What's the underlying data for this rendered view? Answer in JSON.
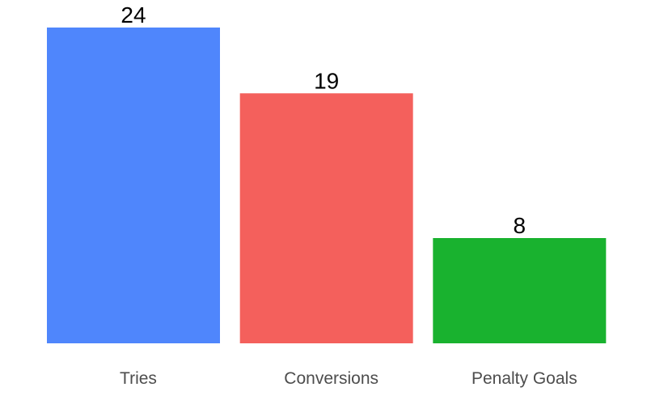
{
  "chart_data": {
    "type": "bar",
    "categories": [
      "Tries",
      "Conversions",
      "Penalty Goals"
    ],
    "values": [
      24,
      19,
      8
    ],
    "colors": [
      "#4f86fc",
      "#f4605c",
      "#19b22f"
    ],
    "title": "",
    "xlabel": "",
    "ylabel": "",
    "ylim": [
      0,
      24
    ],
    "grid": false,
    "legend": "none",
    "data_labels": true
  }
}
